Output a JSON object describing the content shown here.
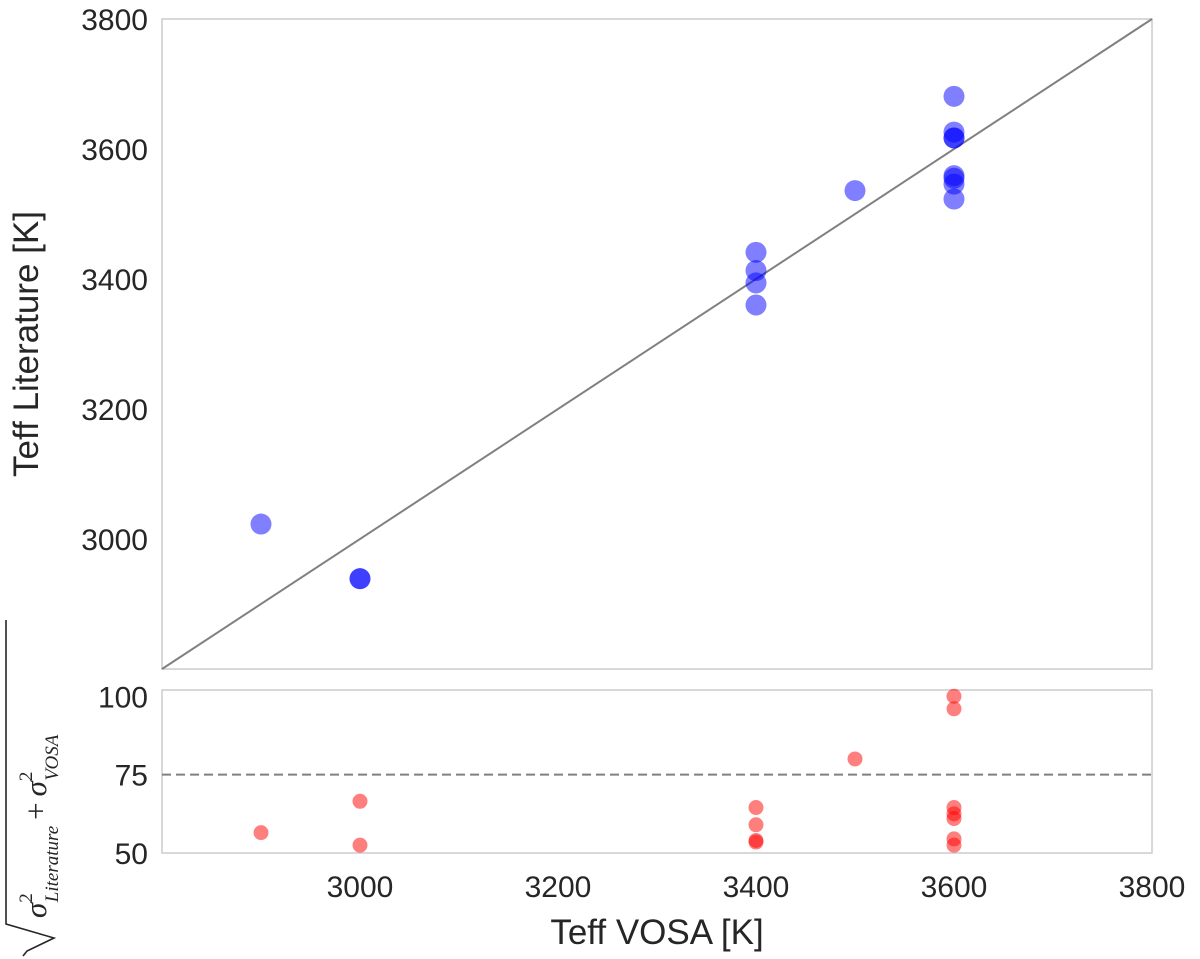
{
  "chart_data": [
    {
      "type": "scatter",
      "title": "",
      "xlabel": "Teff VOSA [K]",
      "ylabel": "Teff Literature [K]",
      "xlim": [
        2800,
        3800
      ],
      "ylim": [
        2800,
        3800
      ],
      "xticks": [
        3000,
        3200,
        3400,
        3600,
        3800
      ],
      "yticks": [
        3000,
        3200,
        3400,
        3600,
        3800
      ],
      "xtick_labels": [
        "3000",
        "3200",
        "3400",
        "3600",
        "3800"
      ],
      "ytick_labels": [
        "3000",
        "3200",
        "3400",
        "3600",
        "3800"
      ],
      "grid": false,
      "reference_line": {
        "from": [
          2800,
          2800
        ],
        "to": [
          3800,
          3800
        ],
        "color": "#808080"
      },
      "series": [
        {
          "color": "#0000ff",
          "opacity": 0.5,
          "x": [
            2900,
            3000,
            3000,
            3400,
            3400,
            3400,
            3400,
            3500,
            3600,
            3600,
            3600,
            3600,
            3600,
            3600,
            3600,
            3600
          ],
          "y": [
            3023,
            2939,
            2939,
            3441,
            3413,
            3394,
            3360,
            3536,
            3681,
            3626,
            3617,
            3617,
            3559,
            3555,
            3546,
            3523
          ]
        }
      ]
    },
    {
      "type": "scatter",
      "title": "",
      "xlabel": "Teff VOSA [K]",
      "ylabel_parts": {
        "sigma": "σ",
        "sup": "2",
        "sub_a": "Literature",
        "plus": "+",
        "sub_b": "VOSA"
      },
      "xlim": [
        2800,
        3800
      ],
      "ylim": [
        50,
        102
      ],
      "yticks": [
        50,
        75,
        100
      ],
      "ytick_labels": [
        "50",
        "75",
        "100"
      ],
      "grid": false,
      "threshold": {
        "y": 75,
        "style": "dashed",
        "color": "#808080"
      },
      "series": [
        {
          "color": "#ff0000",
          "opacity": 0.5,
          "x": [
            2900,
            3000,
            3000,
            3400,
            3400,
            3400,
            3400,
            3500,
            3600,
            3600,
            3600,
            3600,
            3600,
            3600,
            3600
          ],
          "y": [
            56.5,
            66.5,
            52.5,
            64.5,
            59,
            54,
            53.5,
            80,
            100,
            96,
            64.5,
            62.5,
            61,
            54.5,
            52.5
          ]
        }
      ]
    }
  ]
}
